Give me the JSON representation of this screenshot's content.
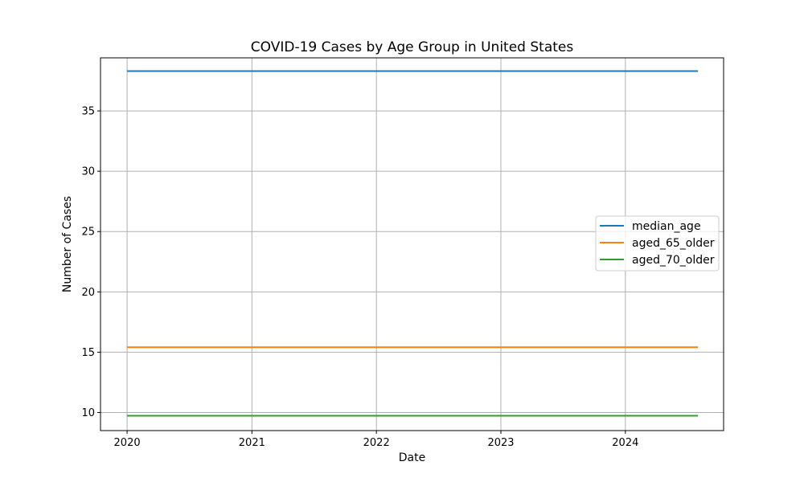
{
  "chart_data": {
    "type": "line",
    "title": "COVID-19 Cases by Age Group in United States",
    "xlabel": "Date",
    "ylabel": "Number of Cases",
    "x_start": "2020-01-01",
    "x_end": "2024-08-01",
    "xlim": [
      "2019-10-15",
      "2024-10-15"
    ],
    "ylim": [
      8.5,
      39.4
    ],
    "xticks": [
      "2020",
      "2021",
      "2022",
      "2023",
      "2024"
    ],
    "yticks": [
      10,
      15,
      20,
      25,
      30,
      35
    ],
    "grid": true,
    "legend_position": "center-right",
    "series": [
      {
        "name": "median_age",
        "color": "#1f77b4",
        "y": 38.3
      },
      {
        "name": "aged_65_older",
        "color": "#ff7f0e",
        "y": 15.413
      },
      {
        "name": "aged_70_older",
        "color": "#2ca02c",
        "y": 9.732
      }
    ]
  }
}
